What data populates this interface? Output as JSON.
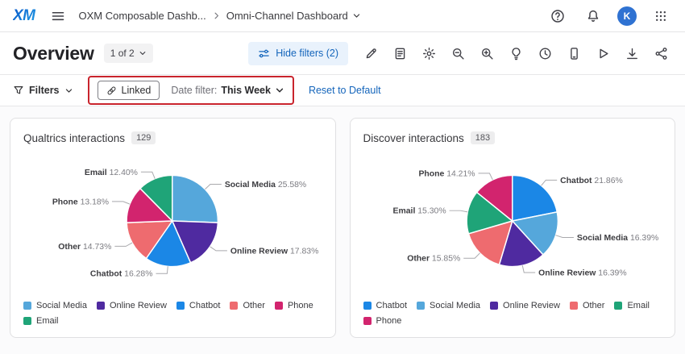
{
  "ui_colors": {
    "accent_blue": "#1465bb",
    "annotation_red": "#c9242d"
  },
  "topbar": {
    "logo_text": "XM",
    "breadcrumb_root": "OXM Composable Dashb...",
    "breadcrumb_current": "Omni-Channel Dashboard",
    "avatar_initial": "K",
    "right_icons": [
      "help-icon",
      "notifications-bell-icon",
      "avatar",
      "apps-grid-icon"
    ]
  },
  "header": {
    "title": "Overview",
    "page_selector_label": "1 of 2",
    "hide_filters_label": "Hide filters (2)",
    "toolbar_icons": [
      "edit-icon",
      "report-icon",
      "settings-gear-icon",
      "zoom-out-icon",
      "zoom-in-icon",
      "tips-lightbulb-icon",
      "history-clock-icon",
      "mobile-preview-icon",
      "present-play-icon",
      "download-icon",
      "share-icon"
    ]
  },
  "filter_bar": {
    "filters_label": "Filters",
    "linked_label": "Linked",
    "date_filter_label": "Date filter:",
    "date_filter_value": "This Week",
    "reset_label": "Reset to Default"
  },
  "chart_data": [
    {
      "type": "pie",
      "title": "Qualtrics interactions",
      "count_badge": "129",
      "legend_position": "bottom",
      "slices": [
        {
          "label": "Social Media",
          "value": 25.58
        },
        {
          "label": "Online Review",
          "value": 17.83
        },
        {
          "label": "Chatbot",
          "value": 16.28
        },
        {
          "label": "Other",
          "value": 14.73
        },
        {
          "label": "Phone",
          "value": 13.18
        },
        {
          "label": "Email",
          "value": 12.4
        }
      ],
      "legend_order": [
        "Social Media",
        "Online Review",
        "Chatbot",
        "Other",
        "Phone",
        "Email"
      ],
      "colors": {
        "Social Media": "#55a7db",
        "Online Review": "#4f2aa0",
        "Chatbot": "#1b87e6",
        "Other": "#ee6b6f",
        "Phone": "#d2246e",
        "Email": "#1fa478"
      }
    },
    {
      "type": "pie",
      "title": "Discover interactions",
      "count_badge": "183",
      "legend_position": "bottom",
      "slices": [
        {
          "label": "Chatbot",
          "value": 21.86
        },
        {
          "label": "Social Media",
          "value": 16.39
        },
        {
          "label": "Online Review",
          "value": 16.39
        },
        {
          "label": "Other",
          "value": 15.85
        },
        {
          "label": "Email",
          "value": 15.3
        },
        {
          "label": "Phone",
          "value": 14.21
        }
      ],
      "legend_order": [
        "Chatbot",
        "Social Media",
        "Online Review",
        "Other",
        "Email",
        "Phone"
      ],
      "colors": {
        "Social Media": "#55a7db",
        "Online Review": "#4f2aa0",
        "Chatbot": "#1b87e6",
        "Other": "#ee6b6f",
        "Phone": "#d2246e",
        "Email": "#1fa478"
      }
    }
  ]
}
